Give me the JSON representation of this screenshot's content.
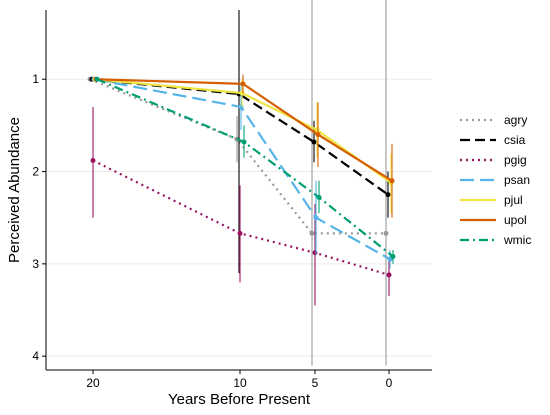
{
  "chart_data": {
    "type": "line",
    "xlabel": "Years Before Present",
    "ylabel": "Perceived Abundance",
    "x_ticks": [
      20,
      10,
      5,
      0
    ],
    "x_tick_labels": [
      "20",
      "10",
      "5",
      "0"
    ],
    "y_ticks": [
      1,
      2,
      3,
      4
    ],
    "y_tick_labels": [
      "1",
      "2",
      "3",
      "4"
    ],
    "y_reversed": true,
    "ylim": [
      4.15,
      0.25
    ],
    "grid": "horizontal major lines",
    "legend_position": "right",
    "series": [
      {
        "name": "agry",
        "color": "#999999",
        "dash": "dotted",
        "x": [
          20,
          10,
          5,
          0
        ],
        "y": [
          1.0,
          1.65,
          2.67,
          2.67
        ],
        "err_low": [
          1.0,
          1.4,
          0.05,
          0.05
        ],
        "err_high": [
          1.0,
          1.9,
          4.1,
          4.1
        ]
      },
      {
        "name": "csia",
        "color": "#000000",
        "dash": "dashed",
        "x": [
          20,
          10,
          5,
          0
        ],
        "y": [
          1.0,
          1.16,
          1.68,
          2.25
        ],
        "err_low": [
          1.0,
          0.25,
          1.45,
          2.0
        ],
        "err_high": [
          1.0,
          3.1,
          1.9,
          2.5
        ]
      },
      {
        "name": "pgig",
        "color": "#99135f",
        "dash": "dotted",
        "x": [
          20,
          10,
          5,
          0
        ],
        "y": [
          1.88,
          2.67,
          2.88,
          3.12
        ],
        "err_low": [
          1.3,
          2.15,
          2.35,
          2.95
        ],
        "err_high": [
          2.5,
          3.2,
          3.45,
          3.35
        ]
      },
      {
        "name": "psan",
        "color": "#56b4e9",
        "dash": "longdash",
        "x": [
          20,
          10,
          5,
          0
        ],
        "y": [
          1.0,
          1.3,
          2.5,
          2.95
        ],
        "err_low": [
          1.0,
          1.05,
          2.1,
          2.85
        ],
        "err_high": [
          1.0,
          1.55,
          2.9,
          3.05
        ]
      },
      {
        "name": "pjul",
        "color": "#f0e442",
        "dash": "solid",
        "x": [
          20,
          10,
          5,
          0
        ],
        "y": [
          1.0,
          1.15,
          1.55,
          2.12
        ],
        "err_low": [
          1.0,
          1.0,
          1.25,
          1.8
        ],
        "err_high": [
          1.0,
          1.3,
          1.85,
          2.45
        ]
      },
      {
        "name": "upol",
        "color": "#d55e00",
        "dash": "solid",
        "x": [
          20,
          10,
          5,
          0
        ],
        "y": [
          1.0,
          1.05,
          1.6,
          2.1
        ],
        "err_low": [
          1.0,
          0.95,
          1.25,
          1.7
        ],
        "err_high": [
          1.0,
          1.15,
          1.95,
          2.5
        ]
      },
      {
        "name": "wmic",
        "color": "#009e73",
        "dash": "dotdash",
        "x": [
          20,
          10,
          5,
          0
        ],
        "y": [
          1.0,
          1.68,
          2.28,
          2.92
        ],
        "err_low": [
          1.0,
          1.5,
          2.1,
          2.85
        ],
        "err_high": [
          1.0,
          1.85,
          2.45,
          3.0
        ]
      }
    ]
  }
}
